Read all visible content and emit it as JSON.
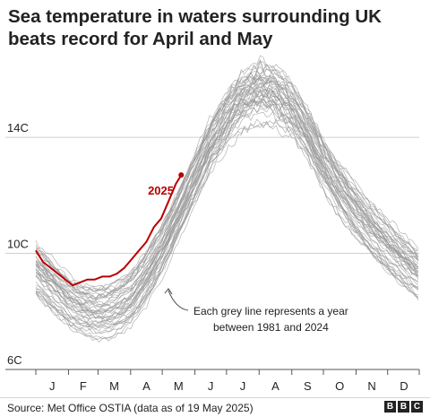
{
  "title": "Sea temperature in waters surrounding UK beats record for April and May",
  "source": "Source: Met Office OSTIA (data as of 19 May 2025)",
  "logo_letters": [
    "B",
    "B",
    "C"
  ],
  "annotation": {
    "label_2025": "2025",
    "grey_note_line1": "Each grey line represents a year",
    "grey_note_line2": "between 1981 and 2024"
  },
  "colors": {
    "highlight": "#b80000",
    "history": "#9a9a9a",
    "grid": "#cfcfcf",
    "text": "#222222"
  },
  "chart_data": {
    "type": "line",
    "title": "Sea temperature in waters surrounding UK beats record for April and May",
    "xlabel": "",
    "ylabel": "",
    "x_unit": "day of year",
    "xlim": [
      1,
      365
    ],
    "ylim": [
      6,
      17
    ],
    "y_ticks": [
      6,
      10,
      14
    ],
    "y_tick_labels": [
      "6C",
      "10C",
      "14C"
    ],
    "x_tick_labels": [
      "J",
      "F",
      "M",
      "A",
      "M",
      "J",
      "J",
      "A",
      "S",
      "O",
      "N",
      "D"
    ],
    "grid": true,
    "highlight_series": {
      "name": "2025",
      "x": [
        1,
        8,
        15,
        22,
        29,
        36,
        43,
        50,
        57,
        64,
        71,
        78,
        85,
        92,
        99,
        106,
        113,
        120,
        127,
        134,
        139
      ],
      "y": [
        10.1,
        9.7,
        9.5,
        9.3,
        9.1,
        8.9,
        9.0,
        9.1,
        9.1,
        9.2,
        9.2,
        9.3,
        9.5,
        9.8,
        10.1,
        10.4,
        10.9,
        11.2,
        11.8,
        12.4,
        12.7
      ]
    },
    "historical_series_description": "Each grey line represents a year between 1981 and 2024",
    "historical_mean": {
      "x": [
        1,
        15,
        32,
        46,
        60,
        74,
        91,
        105,
        121,
        135,
        152,
        166,
        182,
        196,
        213,
        227,
        244,
        258,
        274,
        288,
        305,
        319,
        335,
        349,
        365
      ],
      "y": [
        9.6,
        9.1,
        8.5,
        8.2,
        8.1,
        8.2,
        8.6,
        9.3,
        10.3,
        11.4,
        12.7,
        13.8,
        14.7,
        15.3,
        15.6,
        15.5,
        15.0,
        14.3,
        13.2,
        12.4,
        11.6,
        11.0,
        10.4,
        9.9,
        9.4
      ]
    },
    "historical_years": [
      1981,
      2024
    ],
    "annotations": [
      "2025",
      "Each grey line represents a year between 1981 and 2024"
    ]
  }
}
